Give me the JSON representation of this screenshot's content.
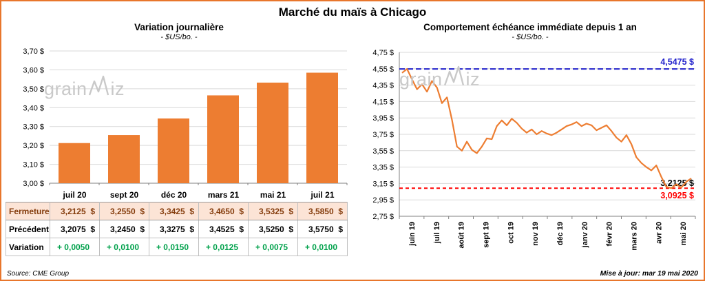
{
  "page": {
    "title": "Marché du maïs à Chicago",
    "source": "Source: CME Group",
    "updated": "Mise à jour: mar 19 mai 2020",
    "watermark": {
      "part1": "grain",
      "part2": "iz"
    }
  },
  "colors": {
    "accent_orange": "#ED7D31",
    "frame_border": "#E8762C",
    "blue_line": "#2222CC",
    "red_line": "#FF0000",
    "green_text": "#00A14B",
    "fermeture_bg": "#FCE4D6",
    "fermeture_text": "#843C0C",
    "gridline": "#D9D9D9",
    "axis": "#808080"
  },
  "chart_data": [
    {
      "type": "bar",
      "title": "Variation journalière",
      "subtitle": "- $US/bo. -",
      "categories": [
        "juil 20",
        "sept 20",
        "déc 20",
        "mars 21",
        "mai 21",
        "juil 21"
      ],
      "values": [
        3.2125,
        3.255,
        3.3425,
        3.465,
        3.5325,
        3.585
      ],
      "ylim": [
        3.0,
        3.7
      ],
      "ytick_step": 0.1,
      "ytick_labels": [
        "3,00 $",
        "3,10 $",
        "3,20 $",
        "3,30 $",
        "3,40 $",
        "3,50 $",
        "3,60 $",
        "3,70 $"
      ],
      "grid": true,
      "legend": "none"
    },
    {
      "type": "line",
      "title": "Comportement échéance immédiate depuis 1 an",
      "subtitle": "- $US/bo. -",
      "x_labels": [
        "juin 19",
        "juil 19",
        "août 19",
        "sept 19",
        "oct 19",
        "nov 19",
        "déc 19",
        "janv 20",
        "févr 20",
        "mars 20",
        "avr 20",
        "mai 20"
      ],
      "ylim": [
        2.75,
        4.75
      ],
      "ytick_step": 0.2,
      "ytick_labels": [
        "2,75 $",
        "2,95 $",
        "3,15 $",
        "3,35 $",
        "3,55 $",
        "3,75 $",
        "3,95 $",
        "4,15 $",
        "4,35 $",
        "4,55 $",
        "4,75 $"
      ],
      "grid": true,
      "legend": "none",
      "series": [
        {
          "name": "échéance immédiate",
          "values": [
            4.5,
            4.5475,
            4.42,
            4.3,
            4.36,
            4.27,
            4.4,
            4.32,
            4.13,
            4.2,
            3.93,
            3.6,
            3.55,
            3.66,
            3.56,
            3.52,
            3.6,
            3.7,
            3.69,
            3.85,
            3.92,
            3.86,
            3.94,
            3.89,
            3.82,
            3.77,
            3.81,
            3.75,
            3.79,
            3.76,
            3.74,
            3.77,
            3.81,
            3.85,
            3.87,
            3.9,
            3.85,
            3.88,
            3.86,
            3.8,
            3.83,
            3.86,
            3.79,
            3.71,
            3.66,
            3.74,
            3.63,
            3.47,
            3.4,
            3.35,
            3.31,
            3.37,
            3.23,
            3.11,
            3.0925,
            3.14,
            3.1,
            3.17,
            3.2125
          ]
        }
      ],
      "hlines": [
        {
          "value": 4.5475,
          "label": "4,5475 $",
          "color": "#2222CC",
          "style": "dashed"
        },
        {
          "value": 3.0925,
          "label": "3,0925 $",
          "color": "#FF0000",
          "style": "dashed"
        }
      ],
      "end_label": {
        "value": 3.2125,
        "label": "3,2125 $",
        "color": "#000000"
      }
    }
  ],
  "table": {
    "rows": [
      {
        "label": "Fermeture",
        "values": [
          "3,2125  $",
          "3,2550  $",
          "3,3425  $",
          "3,4650  $",
          "3,5325  $",
          "3,5850  $"
        ]
      },
      {
        "label": "Précédent",
        "values": [
          "3,2075  $",
          "3,2450  $",
          "3,3275  $",
          "3,4525  $",
          "3,5250  $",
          "3,5750  $"
        ]
      },
      {
        "label": "Variation",
        "values": [
          "+ 0,0050",
          "+ 0,0100",
          "+ 0,0150",
          "+ 0,0125",
          "+ 0,0075",
          "+ 0,0100"
        ]
      }
    ]
  }
}
